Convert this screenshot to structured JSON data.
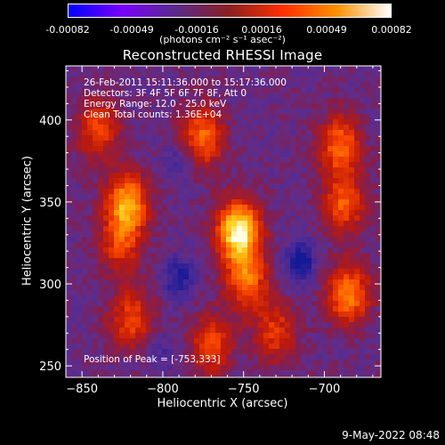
{
  "colorbar": {
    "ticks": [
      "-0.00082",
      "-0.00049",
      "-0.00016",
      "0.00016",
      "0.00049",
      "0.00082"
    ],
    "units": "(photons cm⁻² s⁻¹ asec⁻²)",
    "colors": [
      "#0000ff",
      "#7a00ff",
      "#5a2a8a",
      "#8a2020",
      "#ff3000",
      "#ff9000",
      "#ffffff"
    ]
  },
  "chart_data": {
    "type": "heatmap",
    "title": "Reconstructed RHESSI Image",
    "xlabel": "Heliocentric X (arcsec)",
    "ylabel": "Heliocentric Y (arcsec)",
    "xlim": [
      -860,
      -665
    ],
    "ylim": [
      243,
      433
    ],
    "x_ticks": [
      -850,
      -800,
      -750,
      -700
    ],
    "y_ticks": [
      250,
      300,
      350,
      400
    ],
    "x_tick_labels": [
      "−850",
      "−800",
      "−750",
      "−700"
    ],
    "y_tick_labels": [
      "250",
      "300",
      "350",
      "400"
    ],
    "peak": [
      -753,
      333
    ],
    "sources": [
      {
        "x": -753,
        "y": 333,
        "peak": 1.0
      },
      {
        "x": -822,
        "y": 350,
        "peak": 0.72
      },
      {
        "x": -826,
        "y": 325,
        "peak": 0.4
      },
      {
        "x": -840,
        "y": 395,
        "peak": 0.45
      },
      {
        "x": -775,
        "y": 390,
        "peak": 0.55
      },
      {
        "x": -690,
        "y": 385,
        "peak": 0.55
      },
      {
        "x": -688,
        "y": 350,
        "peak": 0.5
      },
      {
        "x": -685,
        "y": 295,
        "peak": 0.62
      },
      {
        "x": -820,
        "y": 280,
        "peak": 0.45
      },
      {
        "x": -770,
        "y": 265,
        "peak": 0.45
      },
      {
        "x": -730,
        "y": 272,
        "peak": 0.4
      },
      {
        "x": -748,
        "y": 303,
        "peak": 0.55
      }
    ]
  },
  "annotations": {
    "time": "26-Feb-2011 15:11:36.000 to 15:17:36.000",
    "detectors": "Detectors: 3F 4F 5F 6F 7F 8F, Att 0",
    "energy": "Energy Range: 12.0 - 25.0 keV",
    "method": "Clean     Total counts: 1.36E+04",
    "peak": "Position of Peak = [-753,333]"
  },
  "datestamp": "9-May-2022 08:48"
}
